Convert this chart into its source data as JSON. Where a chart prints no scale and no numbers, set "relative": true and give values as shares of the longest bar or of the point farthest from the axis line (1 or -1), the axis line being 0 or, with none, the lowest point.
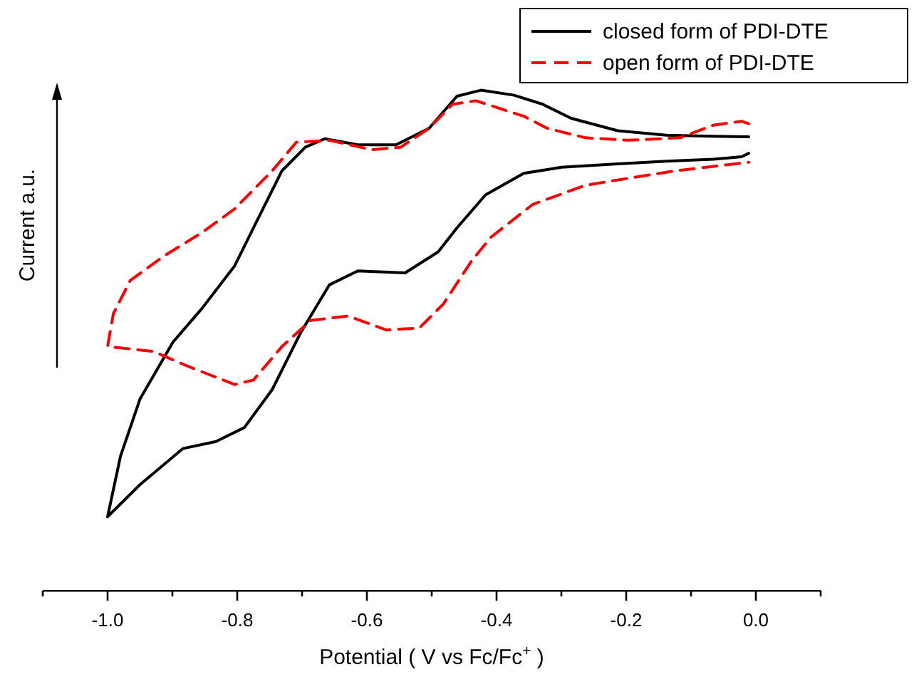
{
  "chart_data": {
    "type": "line",
    "relative": true,
    "xlabel": "Potential ( V vs Fc/Fc$^{+}$ )",
    "ylabel": "Current a.u.",
    "xlim": [
      -1.1,
      0.1
    ],
    "xticks": [
      {
        "value": -1.1,
        "label": null
      },
      {
        "value": -1,
        "label": "-1.0"
      },
      {
        "value": -0.9,
        "label": null
      },
      {
        "value": -0.8,
        "label": "-0.8"
      },
      {
        "value": -0.7,
        "label": null
      },
      {
        "value": -0.6,
        "label": "-0.6"
      },
      {
        "value": -0.5,
        "label": null
      },
      {
        "value": -0.4,
        "label": "-0.4"
      },
      {
        "value": -0.3,
        "label": null
      },
      {
        "value": -0.2,
        "label": "-0.2"
      },
      {
        "value": -0.1,
        "label": null
      },
      {
        "value": 0,
        "label": "0.0"
      },
      {
        "value": 0.1,
        "label": null
      }
    ],
    "legend": "top right",
    "grid": false,
    "marker": "none",
    "series": [
      {
        "name": "closed form of PDI-DTE",
        "color": "#000000",
        "line_style": "solid",
        "x": [
          -0.011,
          -0.066,
          -0.138,
          -0.213,
          -0.285,
          -0.329,
          -0.373,
          -0.424,
          -0.461,
          -0.504,
          -0.555,
          -0.614,
          -0.665,
          -0.695,
          -0.731,
          -0.775,
          -0.804,
          -0.855,
          -0.899,
          -0.95,
          -0.98,
          -1.0,
          -0.95,
          -0.884,
          -0.833,
          -0.789,
          -0.746,
          -0.702,
          -0.658,
          -0.614,
          -0.541,
          -0.49,
          -0.461,
          -0.417,
          -0.358,
          -0.3,
          -0.213,
          -0.138,
          -0.066,
          -0.022,
          -0.011
        ],
        "values": [
          0.907,
          0.908,
          0.91,
          0.919,
          0.944,
          0.972,
          0.99,
          1.0,
          0.988,
          0.924,
          0.891,
          0.891,
          0.903,
          0.886,
          0.839,
          0.725,
          0.649,
          0.563,
          0.497,
          0.383,
          0.269,
          0.148,
          0.212,
          0.284,
          0.298,
          0.326,
          0.402,
          0.516,
          0.611,
          0.639,
          0.635,
          0.677,
          0.725,
          0.791,
          0.834,
          0.846,
          0.853,
          0.858,
          0.862,
          0.867,
          0.874
        ]
      },
      {
        "name": "open form of PDI-DTE",
        "color": "#ff0000",
        "line_style": "dashed",
        "x": [
          -0.011,
          -0.022,
          -0.066,
          -0.117,
          -0.197,
          -0.263,
          -0.322,
          -0.358,
          -0.432,
          -0.468,
          -0.504,
          -0.548,
          -0.592,
          -0.658,
          -0.709,
          -0.746,
          -0.804,
          -0.855,
          -0.914,
          -0.965,
          -0.991,
          -1.0,
          -0.929,
          -0.877,
          -0.804,
          -0.775,
          -0.731,
          -0.687,
          -0.629,
          -0.57,
          -0.519,
          -0.482,
          -0.439,
          -0.409,
          -0.344,
          -0.263,
          -0.197,
          -0.124,
          -0.051,
          -0.011
        ],
        "values": [
          0.933,
          0.938,
          0.93,
          0.905,
          0.9,
          0.905,
          0.924,
          0.948,
          0.979,
          0.972,
          0.924,
          0.886,
          0.881,
          0.9,
          0.896,
          0.839,
          0.763,
          0.715,
          0.668,
          0.62,
          0.554,
          0.488,
          0.478,
          0.449,
          0.412,
          0.421,
          0.488,
          0.54,
          0.549,
          0.521,
          0.525,
          0.573,
          0.658,
          0.706,
          0.772,
          0.81,
          0.824,
          0.839,
          0.85,
          0.856
        ]
      }
    ]
  }
}
